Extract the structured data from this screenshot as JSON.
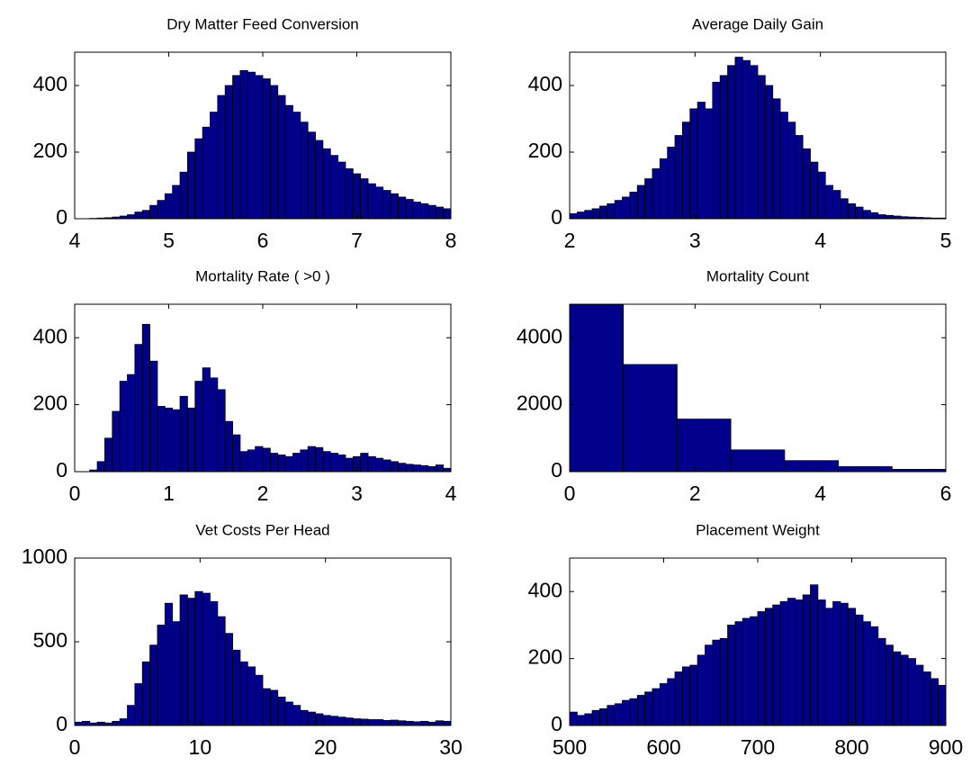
{
  "chart_data": [
    {
      "type": "histogram",
      "title": "Dry Matter Feed Conversion",
      "color": "#00008b",
      "bins": [
        4,
        4.08,
        4.16,
        4.24,
        4.32,
        4.4,
        4.48,
        4.56,
        4.64,
        4.72,
        4.8,
        4.88,
        4.96,
        5.04,
        5.12,
        5.2,
        5.28,
        5.36,
        5.44,
        5.52,
        5.6,
        5.68,
        5.76,
        5.84,
        5.92,
        6,
        6.08,
        6.16,
        6.24,
        6.32,
        6.4,
        6.48,
        6.56,
        6.64,
        6.72,
        6.8,
        6.88,
        6.96,
        7.04,
        7.12,
        7.2,
        7.28,
        7.36,
        7.44,
        7.52,
        7.6,
        7.68,
        7.76,
        7.84,
        7.92,
        8
      ],
      "values": [
        0,
        0,
        1,
        2,
        3,
        5,
        8,
        12,
        20,
        25,
        40,
        55,
        75,
        100,
        140,
        200,
        240,
        275,
        320,
        370,
        400,
        430,
        445,
        440,
        430,
        420,
        400,
        370,
        340,
        320,
        290,
        260,
        235,
        210,
        190,
        170,
        150,
        135,
        120,
        105,
        95,
        85,
        75,
        65,
        58,
        50,
        45,
        40,
        35,
        30
      ],
      "xlim": [
        4,
        8
      ],
      "xticks": [
        4,
        5,
        6,
        7,
        8
      ],
      "ylim": [
        0,
        500
      ],
      "yticks": [
        0,
        200,
        400
      ]
    },
    {
      "type": "histogram",
      "title": "Average Daily Gain",
      "color": "#00008b",
      "bins": [
        2,
        2.06,
        2.12,
        2.18,
        2.24,
        2.3,
        2.36,
        2.42,
        2.48,
        2.54,
        2.6,
        2.66,
        2.72,
        2.78,
        2.84,
        2.9,
        2.96,
        3.02,
        3.08,
        3.14,
        3.2,
        3.26,
        3.32,
        3.38,
        3.44,
        3.5,
        3.56,
        3.62,
        3.68,
        3.74,
        3.8,
        3.86,
        3.92,
        3.98,
        4.04,
        4.1,
        4.16,
        4.22,
        4.28,
        4.34,
        4.4,
        4.46,
        4.52,
        4.58,
        4.64,
        4.7,
        4.76,
        4.82,
        4.88,
        4.94,
        5
      ],
      "values": [
        15,
        20,
        25,
        30,
        38,
        45,
        55,
        65,
        80,
        100,
        120,
        150,
        180,
        215,
        250,
        290,
        330,
        350,
        330,
        410,
        430,
        460,
        485,
        475,
        460,
        430,
        400,
        360,
        320,
        290,
        250,
        210,
        170,
        140,
        100,
        85,
        60,
        45,
        35,
        25,
        18,
        12,
        10,
        8,
        6,
        5,
        4,
        3,
        2,
        2
      ],
      "xlim": [
        2,
        5
      ],
      "xticks": [
        2,
        3,
        4,
        5
      ],
      "ylim": [
        0,
        500
      ],
      "yticks": [
        0,
        200,
        400
      ]
    },
    {
      "type": "histogram",
      "title": "Mortality Rate ( >0 )",
      "color": "#00008b",
      "bins": [
        0,
        0.08,
        0.16,
        0.24,
        0.32,
        0.4,
        0.48,
        0.56,
        0.64,
        0.72,
        0.8,
        0.88,
        0.96,
        1.04,
        1.12,
        1.2,
        1.28,
        1.36,
        1.44,
        1.52,
        1.6,
        1.68,
        1.76,
        1.84,
        1.92,
        2,
        2.08,
        2.16,
        2.24,
        2.32,
        2.4,
        2.48,
        2.56,
        2.64,
        2.72,
        2.8,
        2.88,
        2.96,
        3.04,
        3.12,
        3.2,
        3.28,
        3.36,
        3.44,
        3.52,
        3.6,
        3.68,
        3.76,
        3.84,
        3.92,
        4
      ],
      "values": [
        0,
        0,
        5,
        30,
        100,
        180,
        270,
        290,
        380,
        440,
        330,
        195,
        190,
        185,
        225,
        190,
        270,
        310,
        280,
        245,
        150,
        110,
        60,
        65,
        75,
        70,
        55,
        50,
        45,
        55,
        65,
        75,
        72,
        60,
        55,
        50,
        40,
        45,
        55,
        45,
        40,
        35,
        30,
        25,
        22,
        20,
        18,
        15,
        20,
        10
      ],
      "xlim": [
        0,
        4
      ],
      "xticks": [
        0,
        1,
        2,
        3,
        4
      ],
      "ylim": [
        0,
        500
      ],
      "yticks": [
        0,
        200,
        400
      ]
    },
    {
      "type": "histogram",
      "title": "Mortality Count",
      "color": "#00008b",
      "bins": [
        0,
        0.857,
        1.714,
        2.571,
        3.429,
        4.286,
        5.143,
        6
      ],
      "values": [
        4980,
        3200,
        1570,
        650,
        330,
        150,
        70
      ],
      "xlim": [
        0,
        6
      ],
      "xticks": [
        0,
        2,
        4,
        6
      ],
      "ylim": [
        0,
        5000
      ],
      "yticks": [
        0,
        2000,
        4000
      ]
    },
    {
      "type": "histogram",
      "title": "Vet Costs Per Head",
      "color": "#00008b",
      "bins": [
        0,
        0.6,
        1.2,
        1.8,
        2.4,
        3,
        3.6,
        4.2,
        4.8,
        5.4,
        6,
        6.6,
        7.2,
        7.8,
        8.4,
        9,
        9.6,
        10.2,
        10.8,
        11.4,
        12,
        12.6,
        13.2,
        13.8,
        14.4,
        15,
        15.6,
        16.2,
        16.8,
        17.4,
        18,
        18.6,
        19.2,
        19.8,
        20.4,
        21,
        21.6,
        22.2,
        22.8,
        23.4,
        24,
        24.6,
        25.2,
        25.8,
        26.4,
        27,
        27.6,
        28.2,
        28.8,
        29.4,
        30
      ],
      "values": [
        20,
        25,
        15,
        20,
        15,
        25,
        40,
        120,
        250,
        380,
        480,
        600,
        730,
        620,
        780,
        760,
        800,
        790,
        740,
        650,
        550,
        450,
        380,
        350,
        300,
        220,
        210,
        170,
        140,
        120,
        90,
        80,
        70,
        60,
        55,
        50,
        45,
        40,
        38,
        35,
        35,
        30,
        32,
        28,
        25,
        22,
        25,
        20,
        28,
        25
      ],
      "xlim": [
        0,
        30
      ],
      "xticks": [
        0,
        10,
        20,
        30
      ],
      "ylim": [
        0,
        1000
      ],
      "yticks": [
        0,
        500,
        1000
      ]
    },
    {
      "type": "histogram",
      "title": "Placement Weight",
      "color": "#00008b",
      "bins": [
        500,
        508,
        516,
        524,
        532,
        540,
        548,
        556,
        564,
        572,
        580,
        588,
        596,
        604,
        612,
        620,
        628,
        636,
        644,
        652,
        660,
        668,
        676,
        684,
        692,
        700,
        708,
        716,
        724,
        732,
        740,
        748,
        756,
        764,
        772,
        780,
        788,
        796,
        804,
        812,
        820,
        828,
        836,
        844,
        852,
        860,
        868,
        876,
        884,
        892,
        900
      ],
      "values": [
        40,
        30,
        35,
        45,
        50,
        60,
        65,
        75,
        80,
        90,
        100,
        110,
        125,
        140,
        160,
        175,
        180,
        210,
        240,
        255,
        260,
        300,
        310,
        320,
        325,
        340,
        350,
        360,
        370,
        380,
        375,
        390,
        420,
        375,
        350,
        370,
        365,
        350,
        330,
        310,
        295,
        260,
        240,
        220,
        210,
        200,
        180,
        160,
        140,
        120
      ],
      "xlim": [
        500,
        900
      ],
      "xticks": [
        500,
        600,
        700,
        800,
        900
      ],
      "ylim": [
        0,
        500
      ],
      "yticks": [
        0,
        200,
        400
      ]
    }
  ]
}
